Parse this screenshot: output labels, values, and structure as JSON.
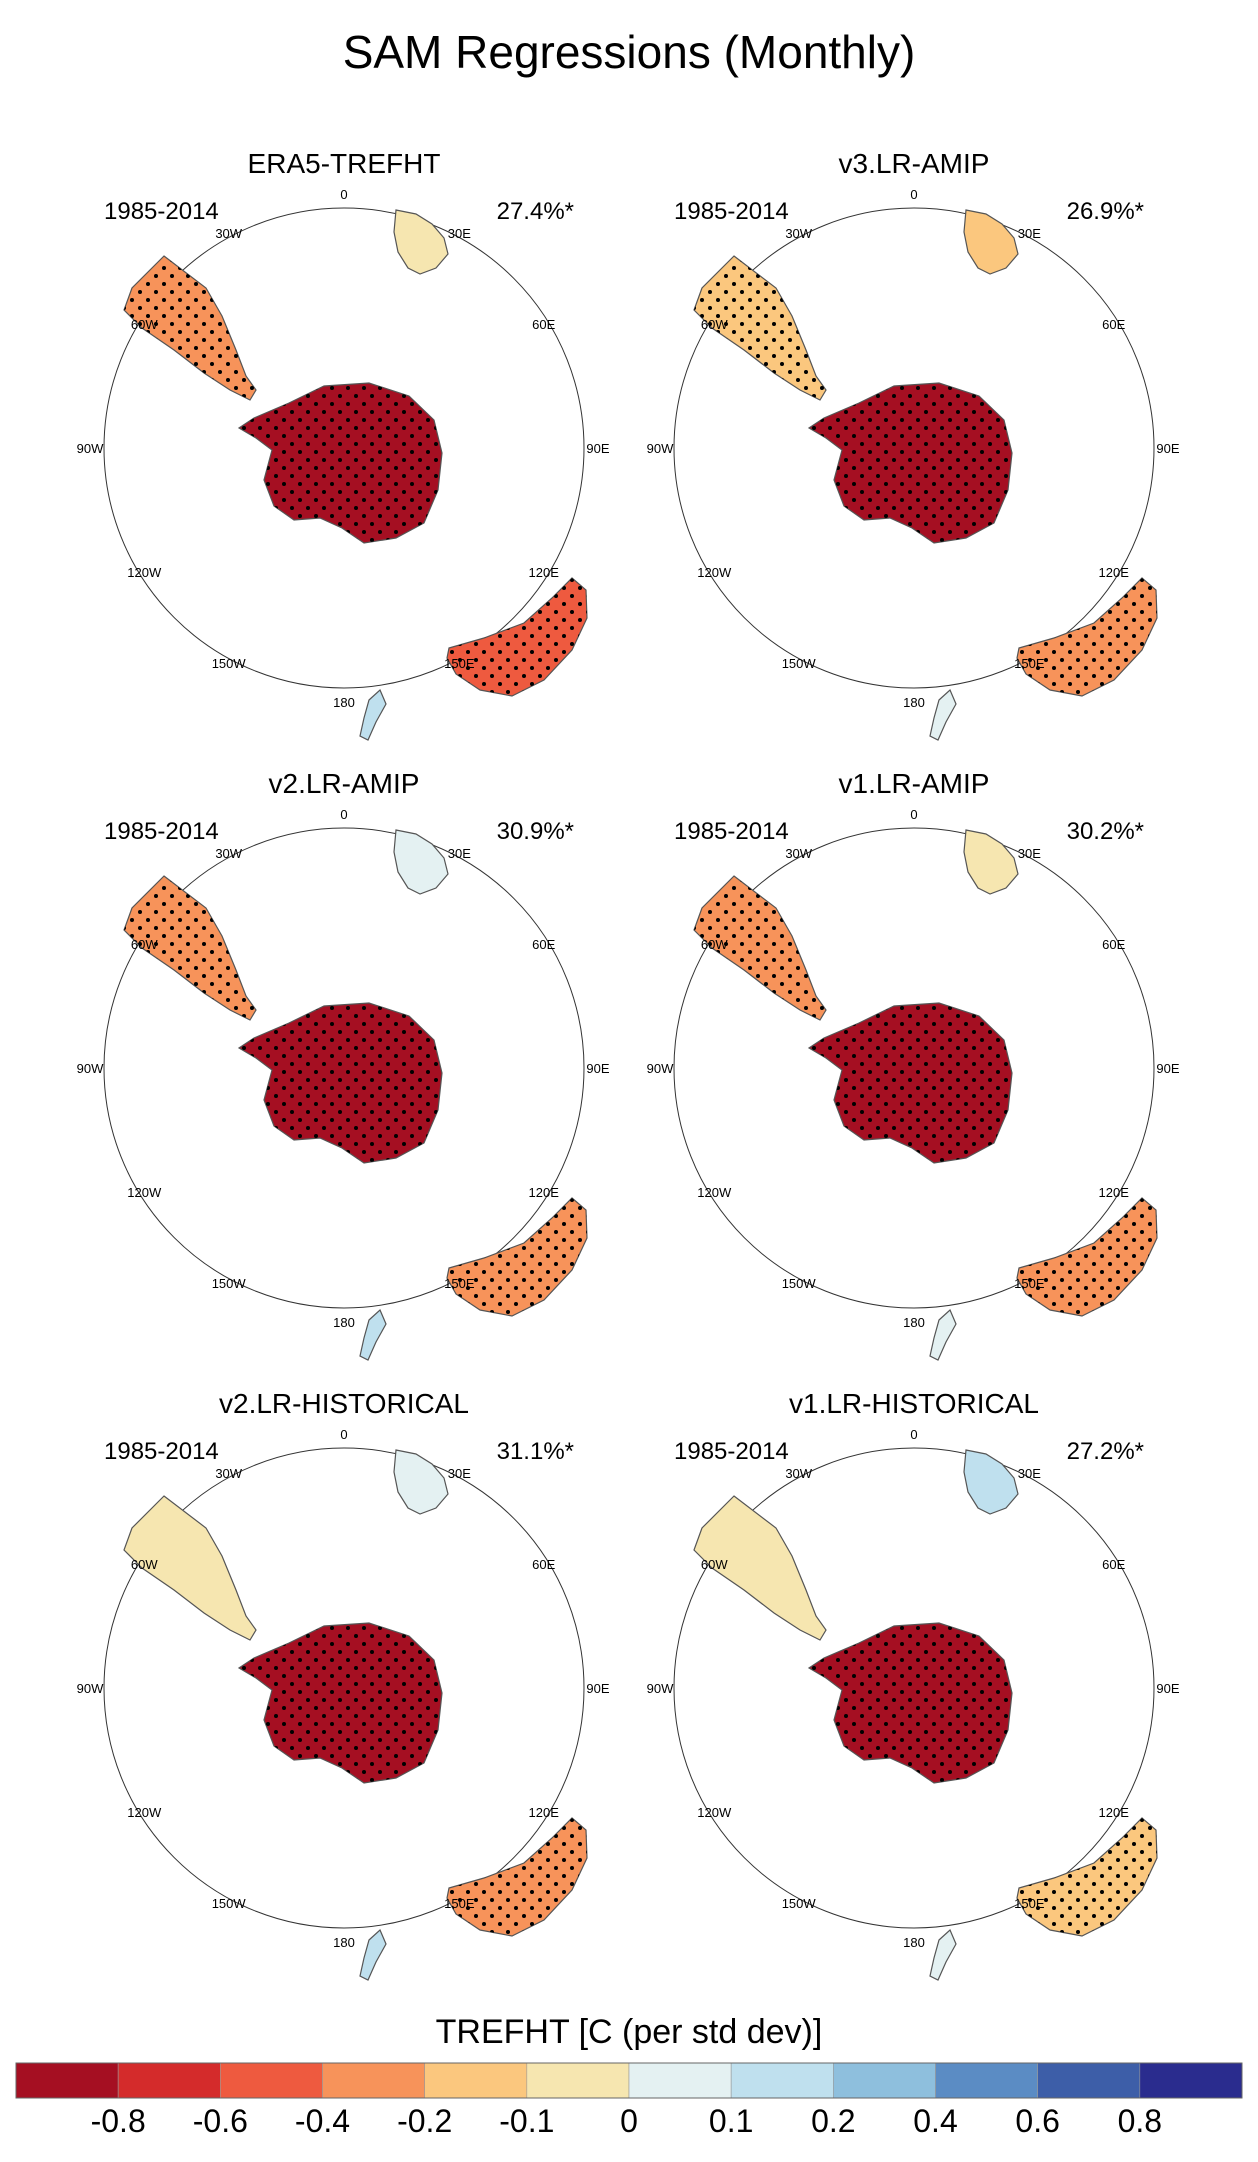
{
  "title": "SAM Regressions (Monthly)",
  "lon_labels": [
    "0",
    "30E",
    "60E",
    "90E",
    "120E",
    "150E",
    "180",
    "150W",
    "120W",
    "90W",
    "60W",
    "30W"
  ],
  "panels": [
    {
      "title": "ERA5-TREFHT",
      "period": "1985-2014",
      "pct": "27.4%*"
    },
    {
      "title": "v3.LR-AMIP",
      "period": "1985-2014",
      "pct": "26.9%*"
    },
    {
      "title": "v2.LR-AMIP",
      "period": "1985-2014",
      "pct": "30.9%*"
    },
    {
      "title": "v1.LR-AMIP",
      "period": "1985-2014",
      "pct": "30.2%*"
    },
    {
      "title": "v2.LR-HISTORICAL",
      "period": "1985-2014",
      "pct": "31.1%*"
    },
    {
      "title": "v1.LR-HISTORICAL",
      "period": "1985-2014",
      "pct": "27.2%*"
    }
  ],
  "colorbar": {
    "label": "TREFHT [C (per std dev)]",
    "colors": [
      "#a50f22",
      "#d42b2b",
      "#ee5a3f",
      "#f7935a",
      "#fbc77e",
      "#f6e6b0",
      "#e4f1f2",
      "#bfe0ee",
      "#8ebfdd",
      "#5b8cc4",
      "#3d5ea8",
      "#2a2c8e"
    ],
    "tick_labels": [
      "-0.8",
      "-0.6",
      "-0.4",
      "-0.2",
      "-0.1",
      "0",
      "0.1",
      "0.2",
      "0.4",
      "0.6",
      "0.8"
    ]
  }
}
